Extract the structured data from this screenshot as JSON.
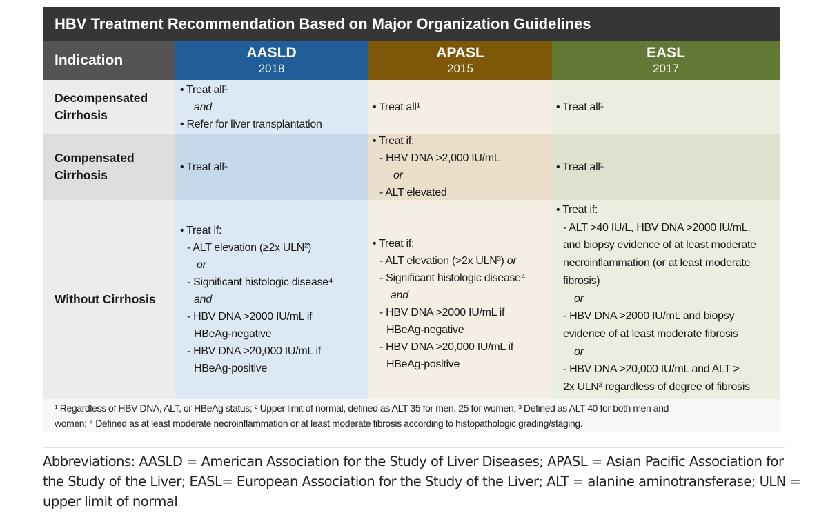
{
  "title": "HBV Treatment Recommendation Based on Major Organization Guidelines",
  "header": {
    "indication": "Indication",
    "aasld": {
      "name": "AASLD",
      "year": "2018"
    },
    "apasl": {
      "name": "APASL",
      "year": "2015"
    },
    "easl": {
      "name": "EASL",
      "year": "2017"
    }
  },
  "rows": [
    {
      "indication": [
        "Decompensated",
        "Cirrhosis"
      ],
      "aasld": [
        "• Treat all¹",
        "and",
        "• Refer for liver transplantation"
      ],
      "apasl": [
        "• Treat all¹"
      ],
      "easl": [
        "• Treat all¹"
      ]
    },
    {
      "indication": [
        "Compensated",
        "Cirrhosis"
      ],
      "aasld": [
        "• Treat all¹"
      ],
      "apasl": [
        "• Treat if:",
        "- HBV DNA >2,000 IU/mL",
        "or",
        "- ALT elevated"
      ],
      "easl": [
        "• Treat all¹"
      ]
    },
    {
      "indication": [
        "Without Cirrhosis"
      ],
      "aasld": [
        "• Treat if:",
        "- ALT elevation (≥2x ULN²)",
        "or",
        "- Significant histologic disease⁴",
        "and",
        "- HBV DNA >2000 IU/mL if",
        "HBeAg-negative",
        "- HBV DNA >20,000 IU/mL if",
        "HBeAg-positive"
      ],
      "apasl": [
        "• Treat if:",
        "- ALT elevation (>2x ULN³)",
        "or",
        "- Significant histologic disease⁴",
        "and",
        "- HBV DNA >2000 IU/mL if",
        "HBeAg-negative",
        "- HBV DNA >20,000 IU/mL if",
        "HBeAg-positive"
      ],
      "easl": [
        "• Treat if:",
        "- ALT >40 IU/L, HBV DNA >2000 IU/mL,",
        "and biopsy evidence of at least moderate",
        "necroinflammation (or at least moderate",
        "fibrosis)",
        "or",
        "- HBV DNA >2000 IU/mL and biopsy",
        "evidence of at least moderate fibrosis",
        "or",
        "- HBV DNA >20,000 IU/mL and ALT >",
        "2x ULN³ regardless of degree of fibrosis"
      ]
    }
  ],
  "footnote": [
    "¹ Regardless of HBV DNA, ALT, or HBeAg status; ² Upper limit of normal, defined as ALT 35 for men, 25 for women; ³ Defined as ALT 40 for both men and",
    "women; ⁴ Defined as at least moderate necroinflammation or at least moderate fibrosis according to histopathologic grading/staging."
  ],
  "abbreviations": [
    "Abbreviations: AASLD = American Association for the Study of Liver Diseases; APASL = Asian Pacific Association for",
    "the Study of the Liver; EASL= European Association for the Study of the Liver; ALT = alanine aminotransferase; ULN =",
    "upper limit of normal"
  ]
}
